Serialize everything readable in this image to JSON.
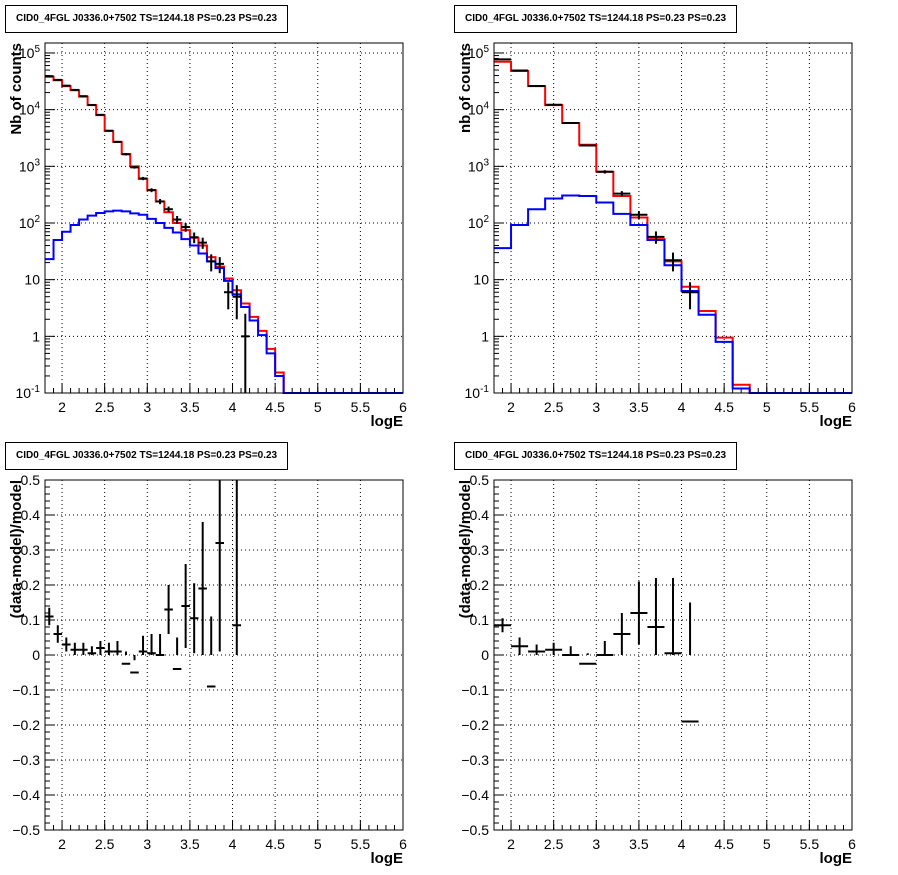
{
  "chart_data": [
    {
      "type": "step",
      "title": "CID0_4FGL J0336.0+7502 TS=1244.18 PS=0.23 PS=0.23",
      "xlabel": "logE",
      "ylabel": "Nb of counts",
      "xlim": [
        1.8,
        6.0
      ],
      "ylim": [
        0.1,
        150000
      ],
      "yscale": "log",
      "grid": true,
      "x_ticks": [
        "2",
        "2.5",
        "3",
        "3.5",
        "4",
        "4.5",
        "5",
        "5.5",
        "6"
      ],
      "y_ticks": [
        "10^-1",
        "1",
        "10",
        "10^2",
        "10^3",
        "10^4",
        "10^5"
      ],
      "bin_width": 0.1,
      "bin_starts": [
        1.8,
        1.9,
        2.0,
        2.1,
        2.2,
        2.3,
        2.4,
        2.5,
        2.6,
        2.7,
        2.8,
        2.9,
        3.0,
        3.1,
        3.2,
        3.3,
        3.4,
        3.5,
        3.6,
        3.7,
        3.8,
        3.9,
        4.0,
        4.1,
        4.2,
        4.3,
        4.4,
        4.5,
        4.6,
        4.7,
        4.8,
        4.9,
        5.0,
        5.1,
        5.2,
        5.3,
        5.4,
        5.5,
        5.6,
        5.7,
        5.8,
        5.9
      ],
      "series": [
        {
          "color": "#ff0000",
          "style": "step",
          "values": [
            38000,
            33000,
            26000,
            22000,
            17000,
            12000,
            8000,
            4200,
            2700,
            1650,
            1000,
            600,
            380,
            240,
            155,
            100,
            75,
            55,
            40,
            25,
            17,
            10.5,
            6.5,
            3.8,
            2.2,
            1.25,
            0.6,
            0.23,
            0.1,
            0.1,
            0.1,
            0.1,
            0.1,
            0.1,
            0.1,
            0.1,
            0.1,
            0.1,
            0.1,
            0.1,
            0.1,
            0.1
          ]
        },
        {
          "color": "#0000ff",
          "style": "step",
          "values": [
            23,
            50,
            70,
            92,
            115,
            135,
            150,
            160,
            165,
            160,
            148,
            140,
            118,
            100,
            82,
            68,
            52,
            40,
            29,
            21,
            16,
            9.5,
            5.5,
            3.3,
            1.9,
            1.05,
            0.5,
            0.2,
            0.1,
            0.1,
            0.1,
            0.1,
            0.1,
            0.1,
            0.1,
            0.1,
            0.1,
            0.1,
            0.1,
            0.1,
            0.1,
            0.1
          ]
        },
        {
          "color": "#000000",
          "style": "errorbar",
          "points": [
            {
              "x": 1.85,
              "y": 39000,
              "err": 400
            },
            {
              "x": 1.95,
              "y": 33500,
              "err": 350
            },
            {
              "x": 2.05,
              "y": 26500,
              "err": 300
            },
            {
              "x": 2.15,
              "y": 22300,
              "err": 280
            },
            {
              "x": 2.25,
              "y": 17300,
              "err": 250
            },
            {
              "x": 2.35,
              "y": 12100,
              "err": 200
            },
            {
              "x": 2.45,
              "y": 8100,
              "err": 170
            },
            {
              "x": 2.55,
              "y": 4250,
              "err": 120
            },
            {
              "x": 2.65,
              "y": 2700,
              "err": 90
            },
            {
              "x": 2.75,
              "y": 1630,
              "err": 70
            },
            {
              "x": 2.85,
              "y": 960,
              "err": 50
            },
            {
              "x": 2.95,
              "y": 610,
              "err": 40
            },
            {
              "x": 3.05,
              "y": 380,
              "err": 30
            },
            {
              "x": 3.15,
              "y": 240,
              "err": 25
            },
            {
              "x": 3.25,
              "y": 175,
              "err": 20
            },
            {
              "x": 3.35,
              "y": 115,
              "err": 18
            },
            {
              "x": 3.45,
              "y": 85,
              "err": 15
            },
            {
              "x": 3.55,
              "y": 56,
              "err": 12
            },
            {
              "x": 3.65,
              "y": 45,
              "err": 10
            },
            {
              "x": 3.75,
              "y": 21,
              "err": 7
            },
            {
              "x": 3.85,
              "y": 19,
              "err": 6
            },
            {
              "x": 3.95,
              "y": 6,
              "err": 3
            },
            {
              "x": 4.05,
              "y": 5,
              "err": 3
            },
            {
              "x": 4.15,
              "y": 1,
              "err": 1.5
            }
          ]
        }
      ]
    },
    {
      "type": "step",
      "title": "CID0_4FGL J0336.0+7502 TS=1244.18 PS=0.23 PS=0.23",
      "xlabel": "logE",
      "ylabel": "nb of counts",
      "xlim": [
        1.8,
        6.0
      ],
      "ylim": [
        0.1,
        150000
      ],
      "yscale": "log",
      "grid": true,
      "x_ticks": [
        "2",
        "2.5",
        "3",
        "3.5",
        "4",
        "4.5",
        "5",
        "5.5",
        "6"
      ],
      "y_ticks": [
        "10^-1",
        "1",
        "10",
        "10^2",
        "10^3",
        "10^4",
        "10^5"
      ],
      "bin_width": 0.2,
      "bin_starts": [
        1.8,
        2.0,
        2.2,
        2.4,
        2.6,
        2.8,
        3.0,
        3.2,
        3.4,
        3.6,
        3.8,
        4.0,
        4.2,
        4.4,
        4.6,
        4.8,
        5.0,
        5.2,
        5.4,
        5.6,
        5.8
      ],
      "series": [
        {
          "color": "#ff0000",
          "style": "step",
          "values": [
            70000,
            48000,
            26000,
            12000,
            5800,
            2400,
            800,
            300,
            125,
            52,
            21,
            7.5,
            2.8,
            0.95,
            0.14,
            0.1,
            0.1,
            0.1,
            0.1,
            0.1,
            0.1
          ]
        },
        {
          "color": "#0000ff",
          "style": "step",
          "values": [
            36,
            92,
            175,
            270,
            305,
            300,
            230,
            145,
            92,
            50,
            18,
            6.3,
            2.4,
            0.8,
            0.12,
            0.1,
            0.1,
            0.1,
            0.1,
            0.1,
            0.1
          ]
        },
        {
          "color": "#000000",
          "style": "errorbar",
          "points": [
            {
              "x": 1.9,
              "y": 77000,
              "err": 600
            },
            {
              "x": 2.1,
              "y": 49000,
              "err": 450
            },
            {
              "x": 2.3,
              "y": 26200,
              "err": 320
            },
            {
              "x": 2.5,
              "y": 12200,
              "err": 220
            },
            {
              "x": 2.7,
              "y": 5800,
              "err": 150
            },
            {
              "x": 2.9,
              "y": 2330,
              "err": 95
            },
            {
              "x": 3.1,
              "y": 800,
              "err": 55
            },
            {
              "x": 3.3,
              "y": 330,
              "err": 35
            },
            {
              "x": 3.5,
              "y": 140,
              "err": 22
            },
            {
              "x": 3.7,
              "y": 57,
              "err": 14
            },
            {
              "x": 3.9,
              "y": 22,
              "err": 8
            },
            {
              "x": 4.1,
              "y": 6,
              "err": 3
            }
          ]
        }
      ]
    },
    {
      "type": "scatter",
      "title": "CID0_4FGL J0336.0+7502 TS=1244.18 PS=0.23 PS=0.23",
      "xlabel": "logE",
      "ylabel": "(data-model)/model",
      "xlim": [
        1.8,
        6.0
      ],
      "ylim": [
        -0.5,
        0.5
      ],
      "grid": true,
      "x_ticks": [
        "2",
        "2.5",
        "3",
        "3.5",
        "4",
        "4.5",
        "5",
        "5.5",
        "6"
      ],
      "y_ticks": [
        "-0.5",
        "-0.4",
        "-0.3",
        "-0.2",
        "-0.1",
        "0",
        "0.1",
        "0.2",
        "0.3",
        "0.4",
        "0.5"
      ],
      "bin_width": 0.1,
      "points": [
        {
          "x": 1.85,
          "y": 0.11,
          "err": 0.025
        },
        {
          "x": 1.95,
          "y": 0.06,
          "err": 0.025
        },
        {
          "x": 2.05,
          "y": 0.03,
          "err": 0.02
        },
        {
          "x": 2.15,
          "y": 0.015,
          "err": 0.02
        },
        {
          "x": 2.25,
          "y": 0.015,
          "err": 0.02
        },
        {
          "x": 2.35,
          "y": 0.005,
          "err": 0.02
        },
        {
          "x": 2.45,
          "y": 0.02,
          "err": 0.02
        },
        {
          "x": 2.55,
          "y": 0.01,
          "err": 0.025
        },
        {
          "x": 2.65,
          "y": 0.01,
          "err": 0.03
        },
        {
          "x": 2.75,
          "y": -0.025,
          "err": 0.035
        },
        {
          "x": 2.85,
          "y": -0.05,
          "err": 0.035
        },
        {
          "x": 2.95,
          "y": 0.01,
          "err": 0.045
        },
        {
          "x": 3.05,
          "y": 0.005,
          "err": 0.055
        },
        {
          "x": 3.15,
          "y": 0.0,
          "err": 0.06
        },
        {
          "x": 3.25,
          "y": 0.13,
          "err": 0.07
        },
        {
          "x": 3.35,
          "y": -0.04,
          "err": 0.09
        },
        {
          "x": 3.45,
          "y": 0.14,
          "err": 0.12
        },
        {
          "x": 3.55,
          "y": 0.105,
          "err": 0.1
        },
        {
          "x": 3.65,
          "y": 0.19,
          "err": 0.19
        },
        {
          "x": 3.75,
          "y": -0.09,
          "err": 0.2
        },
        {
          "x": 3.85,
          "y": 0.32,
          "err": 0.31
        },
        {
          "x": 4.05,
          "y": 0.085,
          "err": 0.48
        }
      ]
    },
    {
      "type": "scatter",
      "title": "CID0_4FGL J0336.0+7502 TS=1244.18 PS=0.23 PS=0.23",
      "xlabel": "logE",
      "ylabel": "(data-model)/model",
      "xlim": [
        1.8,
        6.0
      ],
      "ylim": [
        -0.5,
        0.5
      ],
      "grid": true,
      "x_ticks": [
        "2",
        "2.5",
        "3",
        "3.5",
        "4",
        "4.5",
        "5",
        "5.5",
        "6"
      ],
      "y_ticks": [
        "-0.5",
        "-0.4",
        "-0.3",
        "-0.2",
        "-0.1",
        "0",
        "0.1",
        "0.2",
        "0.3",
        "0.4",
        "0.5"
      ],
      "bin_width": 0.2,
      "points": [
        {
          "x": 1.9,
          "y": 0.085,
          "err": 0.02
        },
        {
          "x": 2.1,
          "y": 0.025,
          "err": 0.025
        },
        {
          "x": 2.3,
          "y": 0.01,
          "err": 0.02
        },
        {
          "x": 2.5,
          "y": 0.015,
          "err": 0.02
        },
        {
          "x": 2.7,
          "y": 0.0,
          "err": 0.025
        },
        {
          "x": 2.9,
          "y": -0.025,
          "err": 0.03
        },
        {
          "x": 3.1,
          "y": 0.0,
          "err": 0.04
        },
        {
          "x": 3.3,
          "y": 0.06,
          "err": 0.06
        },
        {
          "x": 3.5,
          "y": 0.12,
          "err": 0.09
        },
        {
          "x": 3.7,
          "y": 0.08,
          "err": 0.14
        },
        {
          "x": 3.9,
          "y": 0.005,
          "err": 0.215
        },
        {
          "x": 4.1,
          "y": -0.19,
          "err": 0.34
        }
      ]
    }
  ]
}
